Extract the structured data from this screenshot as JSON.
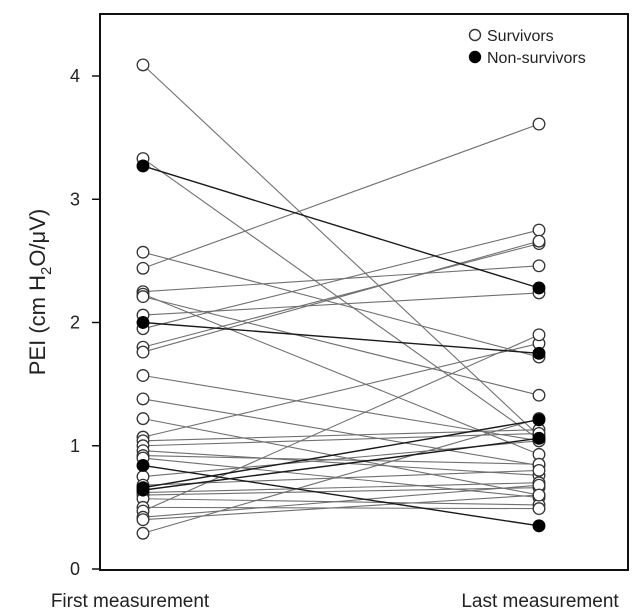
{
  "chart_data": {
    "type": "line",
    "categories": [
      "First measurement",
      "Last measurement"
    ],
    "ylabel": "PEI (cm H2O/μV)",
    "ylabel_parts": {
      "prefix": "PEI (cm H",
      "sub": "2",
      "suffix": "O/μV)"
    },
    "ylim": [
      0,
      4.5
    ],
    "yticks": [
      0,
      1,
      2,
      3,
      4
    ],
    "legend_position": "top-right",
    "series": [
      {
        "name": "Survivors",
        "style": "open-circle",
        "color": "#666666",
        "fill": "#ffffff"
      },
      {
        "name": "Non-survivors",
        "style": "filled-circle",
        "color": "#000000",
        "fill": "#000000"
      }
    ],
    "pairs": [
      {
        "group": 0,
        "first": 4.09,
        "last": 1.08
      },
      {
        "group": 0,
        "first": 3.33,
        "last": 1.05
      },
      {
        "group": 1,
        "first": 3.27,
        "last": 2.28
      },
      {
        "group": 0,
        "first": 2.57,
        "last": 1.72
      },
      {
        "group": 0,
        "first": 2.44,
        "last": 3.61
      },
      {
        "group": 0,
        "first": 2.25,
        "last": 2.46
      },
      {
        "group": 0,
        "first": 2.23,
        "last": 0.93
      },
      {
        "group": 0,
        "first": 2.21,
        "last": 1.41
      },
      {
        "group": 0,
        "first": 2.06,
        "last": 2.24
      },
      {
        "group": 1,
        "first": 2.0,
        "last": 1.75
      },
      {
        "group": 0,
        "first": 1.95,
        "last": 2.75
      },
      {
        "group": 0,
        "first": 1.8,
        "last": 2.64
      },
      {
        "group": 0,
        "first": 1.76,
        "last": 2.66
      },
      {
        "group": 0,
        "first": 1.57,
        "last": 1.04
      },
      {
        "group": 0,
        "first": 1.38,
        "last": 0.84
      },
      {
        "group": 0,
        "first": 1.22,
        "last": 0.6
      },
      {
        "group": 0,
        "first": 1.07,
        "last": 1.83
      },
      {
        "group": 0,
        "first": 1.04,
        "last": 1.13
      },
      {
        "group": 0,
        "first": 1.0,
        "last": 1.1
      },
      {
        "group": 0,
        "first": 0.96,
        "last": 0.76
      },
      {
        "group": 0,
        "first": 0.92,
        "last": 0.85
      },
      {
        "group": 0,
        "first": 0.9,
        "last": 0.58
      },
      {
        "group": 1,
        "first": 0.84,
        "last": 0.35
      },
      {
        "group": 0,
        "first": 0.75,
        "last": 1.04
      },
      {
        "group": 0,
        "first": 0.68,
        "last": 0.8
      },
      {
        "group": 1,
        "first": 0.66,
        "last": 1.21
      },
      {
        "group": 1,
        "first": 0.64,
        "last": 1.06
      },
      {
        "group": 0,
        "first": 0.62,
        "last": 0.7
      },
      {
        "group": 0,
        "first": 0.6,
        "last": 0.66
      },
      {
        "group": 0,
        "first": 0.57,
        "last": 0.52
      },
      {
        "group": 0,
        "first": 0.5,
        "last": 0.49
      },
      {
        "group": 0,
        "first": 0.47,
        "last": 1.9
      },
      {
        "group": 0,
        "first": 0.42,
        "last": 0.68
      },
      {
        "group": 0,
        "first": 0.4,
        "last": 0.6
      },
      {
        "group": 0,
        "first": 0.29,
        "last": 1.22
      }
    ]
  }
}
